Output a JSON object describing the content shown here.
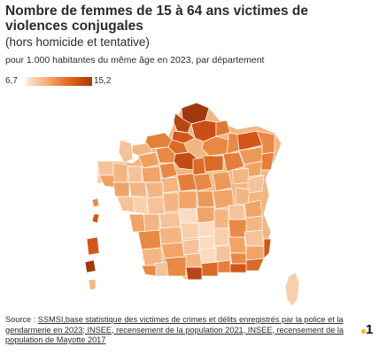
{
  "title": "Nombre de femmes de 15 à 64 ans victimes de violences conjugales",
  "subtitle": "(hors homicide et tentative)",
  "caption": "pour 1.000 habitantes du même âge en 2023, par département",
  "legend": {
    "min": "6,7",
    "max": "15,2",
    "colors": [
      "#fde8d6",
      "#f6a86a",
      "#e0631b",
      "#a43a0c"
    ]
  },
  "source": {
    "prefix": "Source : ",
    "text": "SSMSI,base statistique des victimes de crimes et délits enregistrés par la police et la gendarmerie en 2023; INSEE, recensement de la population 2021, INSEE, recensement de la population de Mayotte 2017"
  },
  "logo": "1",
  "map_colors": {
    "darkest": "#9e3a0e",
    "dark": "#d2561a",
    "medium": "#e88a45",
    "light": "#f3b683",
    "lightest": "#fbdcc0",
    "border": "#ffffff"
  }
}
